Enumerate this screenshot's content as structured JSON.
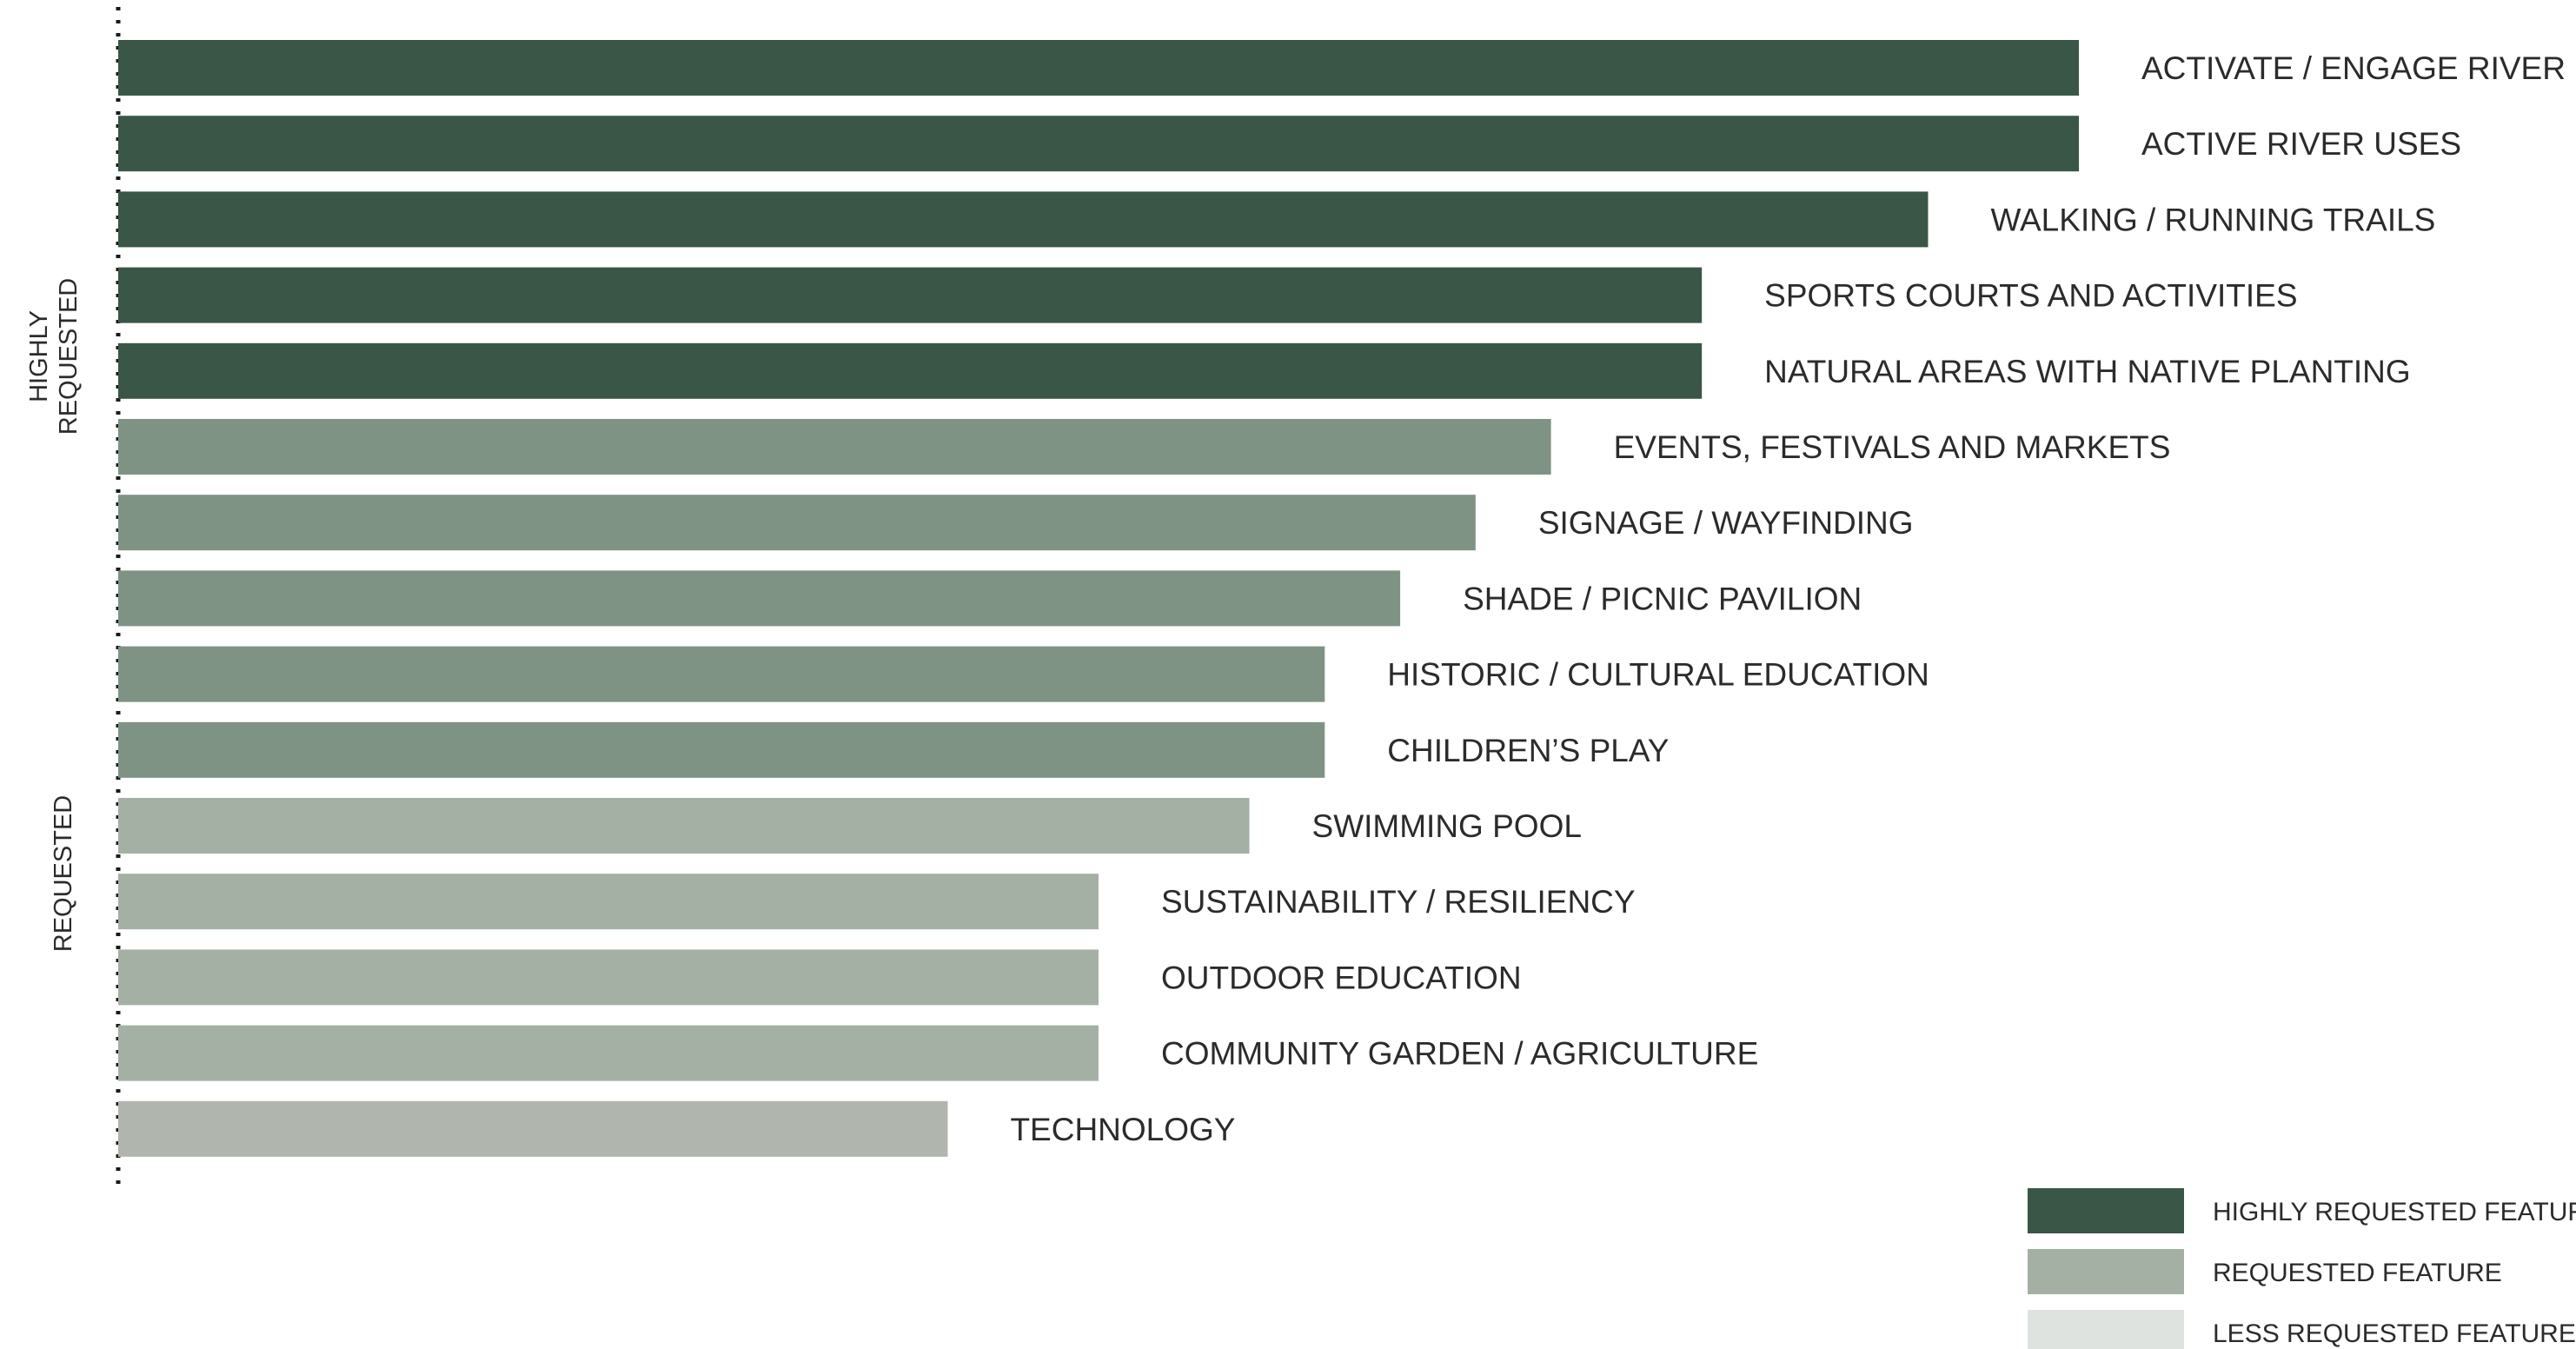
{
  "chart_data": {
    "type": "bar",
    "orientation": "horizontal",
    "categories": [
      "ACTIVATE / ENGAGE RIVER",
      "ACTIVE RIVER USES",
      "WALKING  / RUNNING TRAILS",
      "SPORTS COURTS AND ACTIVITIES",
      "NATURAL AREAS WITH NATIVE PLANTING",
      "EVENTS, FESTIVALS AND MARKETS",
      "SIGNAGE / WAYFINDING",
      "SHADE / PICNIC PAVILION",
      "HISTORIC / CULTURAL EDUCATION",
      "CHILDREN’S PLAY",
      "SWIMMING POOL",
      "SUSTAINABILITY / RESILIENCY",
      "OUTDOOR EDUCATION",
      "COMMUNITY GARDEN / AGRICULTURE",
      "TECHNOLOGY"
    ],
    "values": [
      26,
      26,
      24,
      21,
      21,
      19,
      18,
      17,
      16,
      16,
      15,
      13,
      13,
      13,
      11
    ],
    "bar_colors": [
      "#3a5646",
      "#3a5646",
      "#3a5646",
      "#3a5646",
      "#3a5646",
      "#7f9384",
      "#7f9384",
      "#7f9384",
      "#7f9384",
      "#7f9384",
      "#a5b0a5",
      "#a5b0a5",
      "#a5b0a5",
      "#a5b0a5",
      "#b0b5ae"
    ],
    "xlim": [
      0,
      26
    ],
    "grid": false,
    "axis_labels": false,
    "groups": [
      {
        "name": "HIGHLY REQUESTED",
        "lines": [
          "HIGHLY",
          "REQUESTED"
        ]
      },
      {
        "name": "REQUESTED",
        "lines": [
          "REQUESTED"
        ]
      }
    ],
    "legend": {
      "position": "bottom-right",
      "items": [
        {
          "label": "HIGHLY REQUESTED FEATURE",
          "color": "#3a5646"
        },
        {
          "label": "REQUESTED FEATURE",
          "color": "#a5b0a5"
        },
        {
          "label": "LESS REQUESTED FEATURE",
          "color": "#dfe3df"
        }
      ]
    }
  }
}
